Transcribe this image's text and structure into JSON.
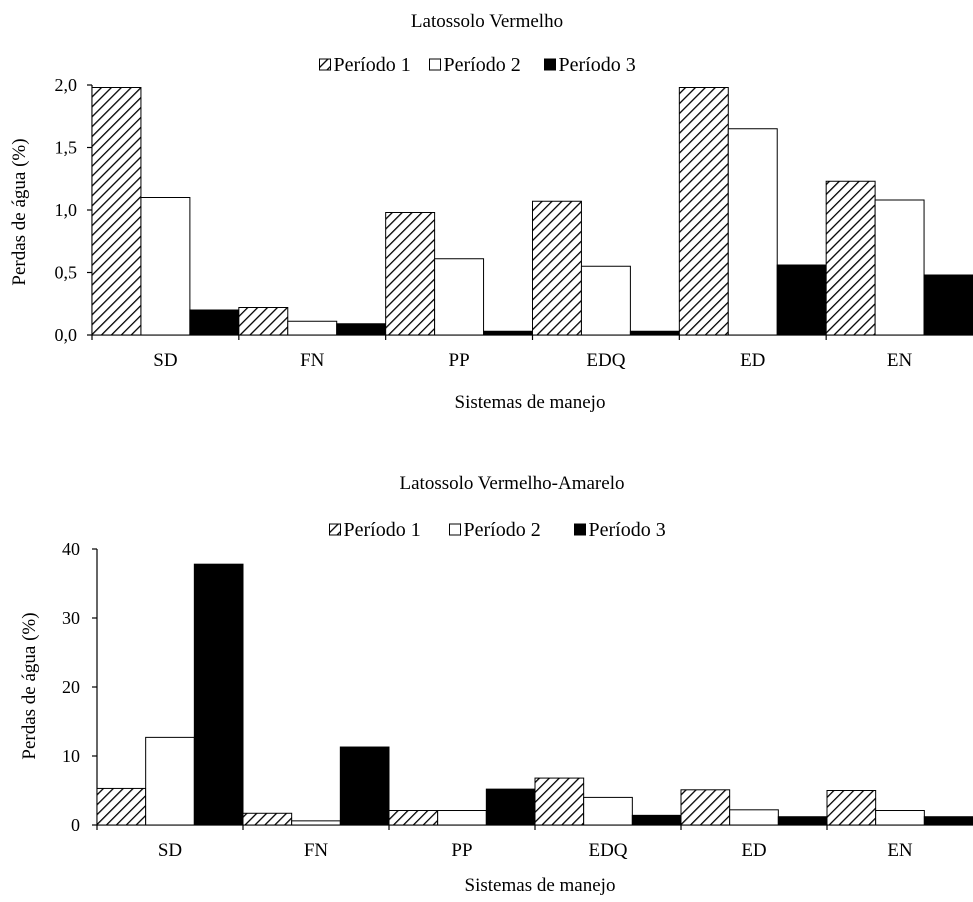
{
  "chart_data": [
    {
      "type": "bar",
      "title": "Latossolo Vermelho",
      "xlabel": "Sistemas de manejo",
      "ylabel": "Perdas de água (%)",
      "ylim": [
        0,
        2.0
      ],
      "yticks": [
        "0,0",
        "0,5",
        "1,0",
        "1,5",
        "2,0"
      ],
      "yticks_values": [
        0,
        0.5,
        1.0,
        1.5,
        2.0
      ],
      "categories": [
        "SD",
        "FN",
        "PP",
        "EDQ",
        "ED",
        "EN"
      ],
      "series": [
        {
          "name": "Período 1",
          "fill": "hatch",
          "values": [
            1.98,
            0.22,
            0.98,
            1.07,
            1.98,
            1.23
          ]
        },
        {
          "name": "Período 2",
          "fill": "white",
          "values": [
            1.1,
            0.11,
            0.61,
            0.55,
            1.65,
            1.08
          ]
        },
        {
          "name": "Período 3",
          "fill": "black",
          "values": [
            0.2,
            0.09,
            0.03,
            0.03,
            0.56,
            0.48
          ]
        }
      ],
      "grid": false,
      "legend_position": "top"
    },
    {
      "type": "bar",
      "title": "Latossolo Vermelho-Amarelo",
      "xlabel": "Sistemas de manejo",
      "ylabel": "Perdas de água (%)",
      "ylim": [
        0,
        40
      ],
      "yticks": [
        "0",
        "10",
        "20",
        "30",
        "40"
      ],
      "yticks_values": [
        0,
        10,
        20,
        30,
        40
      ],
      "categories": [
        "SD",
        "FN",
        "PP",
        "EDQ",
        "ED",
        "EN"
      ],
      "series": [
        {
          "name": "Período 1",
          "fill": "hatch",
          "values": [
            5.3,
            1.7,
            2.1,
            6.8,
            5.1,
            5.0
          ]
        },
        {
          "name": "Período 2",
          "fill": "white",
          "values": [
            12.7,
            0.6,
            2.1,
            4.0,
            2.2,
            2.1
          ]
        },
        {
          "name": "Período 3",
          "fill": "black",
          "values": [
            37.8,
            11.3,
            5.2,
            1.4,
            1.2,
            1.2
          ]
        }
      ],
      "grid": false,
      "legend_position": "top"
    }
  ]
}
